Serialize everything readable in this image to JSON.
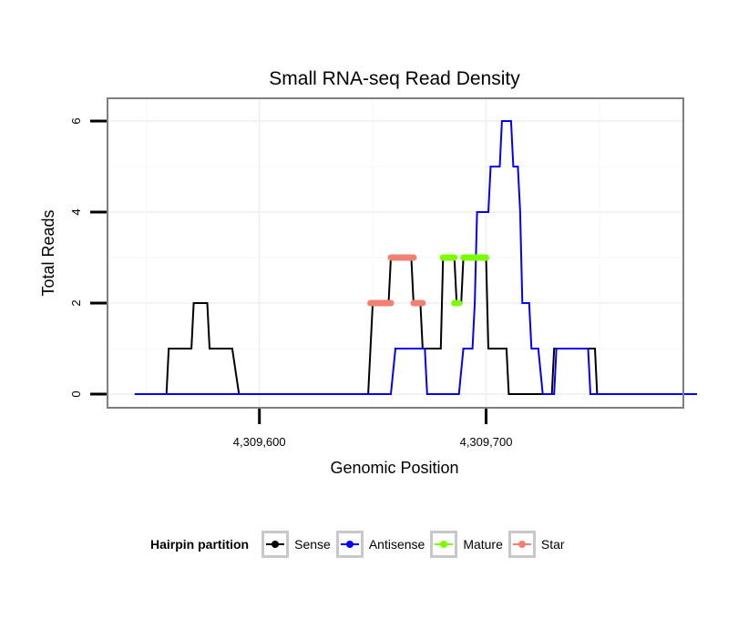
{
  "chart_data": {
    "type": "line",
    "title": "Small RNA-seq Read Density",
    "xlabel": "Genomic Position",
    "ylabel": "Total Reads",
    "xlim": [
      4309533,
      4309787
    ],
    "ylim": [
      -0.3,
      6.5
    ],
    "x_ticks": [
      4309600,
      4309700
    ],
    "x_tick_labels": [
      "4,309,600",
      "4,309,700"
    ],
    "y_ticks": [
      0,
      2,
      4,
      6
    ],
    "y_tick_labels": [
      "0",
      "2",
      "4",
      "6"
    ],
    "grid": true,
    "legend": {
      "title": "Hairpin partition",
      "placement": "bottom"
    },
    "series": [
      {
        "name": "Sense",
        "color": "#000000",
        "points": [
          [
            4309545,
            0
          ],
          [
            4309559,
            0
          ],
          [
            4309560,
            1
          ],
          [
            4309570,
            1
          ],
          [
            4309571,
            2
          ],
          [
            4309577,
            2
          ],
          [
            4309578,
            1
          ],
          [
            4309588,
            1
          ],
          [
            4309591,
            0
          ],
          [
            4309648,
            0
          ],
          [
            4309650,
            2
          ],
          [
            4309657,
            2
          ],
          [
            4309658,
            3
          ],
          [
            4309667,
            3
          ],
          [
            4309668,
            2
          ],
          [
            4309671,
            2
          ],
          [
            4309672,
            1
          ],
          [
            4309680,
            1
          ],
          [
            4309681,
            3
          ],
          [
            4309686,
            3
          ],
          [
            4309687,
            2
          ],
          [
            4309689,
            2
          ],
          [
            4309690,
            3
          ],
          [
            4309700,
            3
          ],
          [
            4309701,
            1
          ],
          [
            4309709,
            1
          ],
          [
            4309710,
            0
          ],
          [
            4309729,
            0
          ],
          [
            4309730,
            1
          ],
          [
            4309748,
            1
          ],
          [
            4309749,
            0
          ],
          [
            4309793,
            0
          ]
        ]
      },
      {
        "name": "Antisense",
        "color": "#0000ff",
        "points": [
          [
            4309545,
            0
          ],
          [
            4309658,
            0
          ],
          [
            4309660,
            1
          ],
          [
            4309673,
            1
          ],
          [
            4309674,
            0
          ],
          [
            4309680,
            0
          ],
          [
            4309682,
            0
          ],
          [
            4309683,
            0
          ],
          [
            4309688,
            0
          ],
          [
            4309690,
            1
          ],
          [
            4309694,
            1
          ],
          [
            4309695,
            2
          ],
          [
            4309696,
            4
          ],
          [
            4309701,
            4
          ],
          [
            4309702,
            5
          ],
          [
            4309706,
            5
          ],
          [
            4309707,
            6
          ],
          [
            4309711,
            6
          ],
          [
            4309712,
            5
          ],
          [
            4309714,
            5
          ],
          [
            4309715,
            4
          ],
          [
            4309716,
            2
          ],
          [
            4309719,
            2
          ],
          [
            4309720,
            1
          ],
          [
            4309723,
            1
          ],
          [
            4309725,
            0
          ],
          [
            4309730,
            0
          ],
          [
            4309731,
            1
          ],
          [
            4309745,
            1
          ],
          [
            4309746,
            0
          ],
          [
            4309793,
            0
          ]
        ]
      },
      {
        "name": "Mature",
        "color": "#7cfc00",
        "segments": [
          {
            "x": [
              4309681,
              4309686
            ],
            "y": 3
          },
          {
            "x": [
              4309686,
              4309688
            ],
            "y": 2
          },
          {
            "x": [
              4309690,
              4309700
            ],
            "y": 3
          }
        ]
      },
      {
        "name": "Star",
        "color": "#f08070",
        "segments": [
          {
            "x": [
              4309649,
              4309658
            ],
            "y": 2
          },
          {
            "x": [
              4309658,
              4309668
            ],
            "y": 3
          },
          {
            "x": [
              4309668,
              4309672
            ],
            "y": 2
          }
        ]
      }
    ]
  },
  "legend_labels": {
    "title": "Hairpin partition",
    "sense": "Sense",
    "antisense": "Antisense",
    "mature": "Mature",
    "star": "Star"
  }
}
